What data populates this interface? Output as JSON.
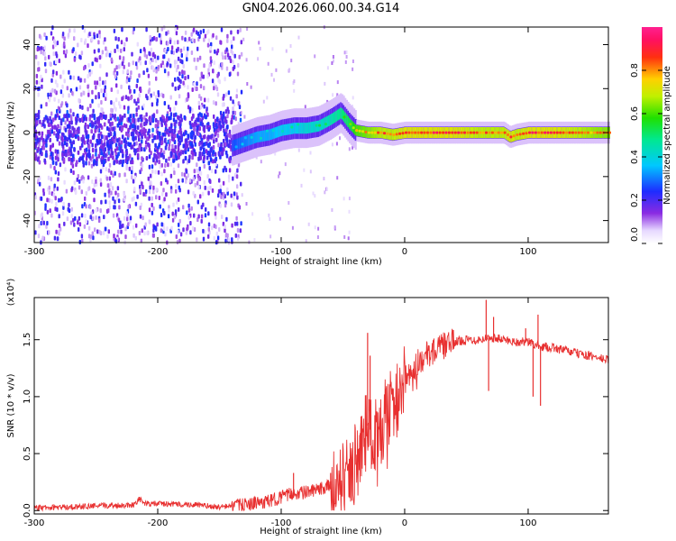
{
  "title": "GN04.2026.060.00.34.G14",
  "chart_data": [
    {
      "type": "heatmap",
      "name": "spectrogram",
      "xlabel": "Height of straight line (km)",
      "ylabel": "Frequency (Hz)",
      "xlim": [
        -300,
        165
      ],
      "ylim": [
        -50,
        48
      ],
      "xticks": [
        -300,
        -200,
        -100,
        0,
        100
      ],
      "xtick_labels": [
        "-300",
        "-200",
        "-100",
        "0",
        "100"
      ],
      "yticks": [
        -40,
        -20,
        0,
        20,
        40
      ],
      "ytick_labels": [
        "-40",
        "-20",
        "0",
        "20",
        "40"
      ],
      "ridge": {
        "x": [
          -140,
          -130,
          -120,
          -110,
          -100,
          -90,
          -80,
          -70,
          -60,
          -52,
          -45,
          -40,
          -30,
          -20,
          -10,
          0,
          20,
          40,
          60,
          80,
          85,
          90,
          100,
          120,
          140,
          165
        ],
        "freq": [
          -6,
          -4,
          -2,
          -1,
          1,
          2,
          2,
          3,
          6,
          9,
          4,
          1,
          0,
          0,
          -1,
          0,
          0,
          0,
          0,
          0,
          -2,
          -1,
          0,
          0,
          0,
          0
        ],
        "amplitude": [
          0.35,
          0.4,
          0.45,
          0.45,
          0.5,
          0.5,
          0.55,
          0.55,
          0.6,
          0.65,
          0.7,
          0.8,
          0.85,
          0.9,
          0.9,
          0.95,
          0.95,
          0.95,
          0.9,
          0.9,
          0.95,
          0.9,
          0.95,
          0.95,
          0.9,
          0.85
        ]
      },
      "noise_region": [
        -300,
        -140
      ],
      "colorbar": {
        "label": "Normalized spectral amplitude",
        "range": [
          0,
          1
        ],
        "ticks": [
          0,
          0.2,
          0.4,
          0.6,
          0.8
        ],
        "tick_labels": [
          "0.0",
          "0.2",
          "0.4",
          "0.6",
          "0.8"
        ]
      }
    },
    {
      "type": "line",
      "name": "snr",
      "xlabel": "Height of straight line (km)",
      "ylabel": "SNR (10 * v/v)",
      "scale_label": "(x10⁴)",
      "xlim": [
        -300,
        165
      ],
      "ylim": [
        -0.03,
        1.87
      ],
      "xticks": [
        -300,
        -200,
        -100,
        0,
        100
      ],
      "xtick_labels": [
        "-300",
        "-200",
        "-100",
        "0",
        "100"
      ],
      "yticks": [
        0,
        0.5,
        1.0,
        1.5
      ],
      "ytick_labels": [
        "0.0",
        "0.5",
        "1.0",
        "1.5"
      ],
      "color": "#e83030",
      "series": {
        "x": [
          -300,
          -250,
          -220,
          -215,
          -210,
          -200,
          -170,
          -150,
          -130,
          -110,
          -100,
          -90,
          -80,
          -70,
          -60,
          -50,
          -45,
          -40,
          -35,
          -30,
          -25,
          -20,
          -15,
          -10,
          -5,
          0,
          5,
          10,
          20,
          30,
          40,
          50,
          60,
          70,
          80,
          90,
          100,
          110,
          120,
          140,
          165
        ],
        "y": [
          0.02,
          0.04,
          0.05,
          0.1,
          0.06,
          0.06,
          0.05,
          0.03,
          0.05,
          0.08,
          0.12,
          0.15,
          0.16,
          0.18,
          0.22,
          0.26,
          0.3,
          0.42,
          0.55,
          0.75,
          0.65,
          0.7,
          0.85,
          0.95,
          1.0,
          1.1,
          1.2,
          1.3,
          1.38,
          1.44,
          1.48,
          1.5,
          1.5,
          1.52,
          1.5,
          1.48,
          1.48,
          1.44,
          1.43,
          1.38,
          1.32
        ]
      },
      "spikes": [
        {
          "x": -30,
          "y": 1.56
        },
        {
          "x": -28,
          "y": 1.36
        },
        {
          "x": -36,
          "y": 0.68
        },
        {
          "x": -60,
          "y": 0.33
        },
        {
          "x": -90,
          "y": 0.33
        },
        {
          "x": -215,
          "y": 0.12
        },
        {
          "x": 66,
          "y": 1.85
        },
        {
          "x": 68,
          "y": 1.05
        },
        {
          "x": 72,
          "y": 1.7
        },
        {
          "x": 98,
          "y": 1.6
        },
        {
          "x": 104,
          "y": 1.0
        },
        {
          "x": 108,
          "y": 1.72
        },
        {
          "x": 110,
          "y": 0.92
        }
      ]
    }
  ]
}
